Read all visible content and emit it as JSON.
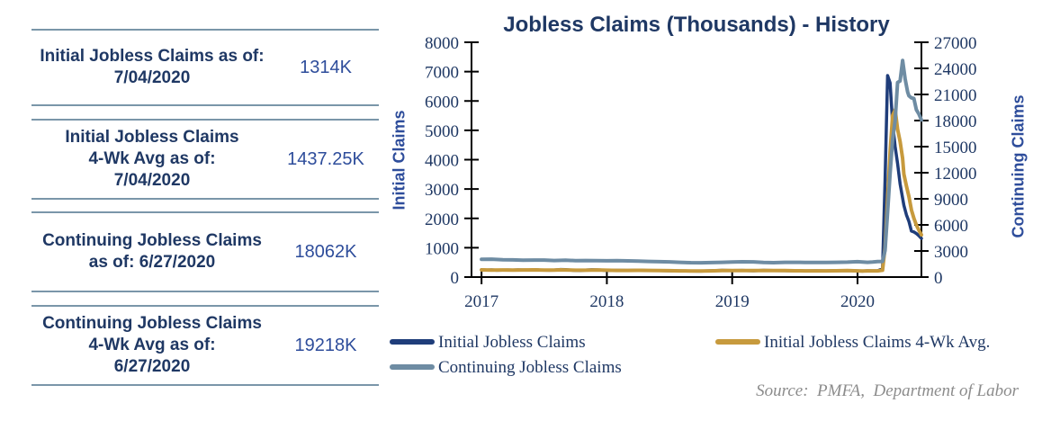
{
  "table": {
    "rows": [
      {
        "label": "Initial Jobless Claims as of:\n7/04/2020",
        "value": "1314K"
      },
      {
        "label": "Initial Jobless Claims\n4-Wk Avg as of:\n7/04/2020",
        "value": "1437.25K"
      },
      {
        "label": "Continuing Jobless Claims\nas of: 6/27/2020",
        "value": "18062K"
      },
      {
        "label": "Continuing Jobless Claims\n4-Wk Avg as of:\n6/27/2020",
        "value": "19218K"
      }
    ]
  },
  "chart": {
    "title": "Jobless Claims (Thousands) - History",
    "left_axis_label": "Initial Claims",
    "right_axis_label": "Continuing Claims",
    "source": "Source:  PMFA,  Department of Labor"
  },
  "legend": {
    "items": [
      {
        "label": "Initial Jobless Claims",
        "color": "#1f3d7a"
      },
      {
        "label": "Initial Jobless Claims 4-Wk Avg.",
        "color": "#c79a3d"
      },
      {
        "label": "Continuing Jobless Claims",
        "color": "#6e8ca3"
      }
    ]
  },
  "colors": {
    "navy_text": "#1f3864",
    "value_text": "#2e4d9b",
    "initial_line": "#1f3d7a",
    "avg_line": "#c79a3d",
    "continuing_line": "#6e8ca3",
    "table_rule": "#7a96a9",
    "axis": "#000000",
    "source_text": "#8c8c8c"
  },
  "chart_data": {
    "type": "line",
    "title": "Jobless Claims (Thousands) - History",
    "grid": false,
    "legend_position": "bottom-left",
    "x_ticks": [
      2017,
      2018,
      2019,
      2020
    ],
    "x_range": [
      2016.92,
      2020.51
    ],
    "left_axis": {
      "label": "Initial Claims",
      "ticks": [
        0,
        1000,
        2000,
        3000,
        4000,
        5000,
        6000,
        7000,
        8000
      ],
      "range": [
        0,
        8000
      ]
    },
    "right_axis": {
      "label": "Continuing Claims",
      "ticks": [
        0,
        3000,
        6000,
        9000,
        12000,
        15000,
        18000,
        21000,
        24000,
        27000
      ],
      "range": [
        0,
        27000
      ]
    },
    "series": [
      {
        "name": "Initial Jobless Claims",
        "axis": "left",
        "color": "#1f3d7a",
        "width": 3.5,
        "points": [
          [
            2017.0,
            247
          ],
          [
            2017.04,
            237
          ],
          [
            2017.08,
            246
          ],
          [
            2017.12,
            234
          ],
          [
            2017.17,
            240
          ],
          [
            2017.21,
            242
          ],
          [
            2017.25,
            235
          ],
          [
            2017.29,
            244
          ],
          [
            2017.33,
            241
          ],
          [
            2017.38,
            236
          ],
          [
            2017.42,
            250
          ],
          [
            2017.46,
            242
          ],
          [
            2017.5,
            240
          ],
          [
            2017.54,
            233
          ],
          [
            2017.58,
            236
          ],
          [
            2017.63,
            259
          ],
          [
            2017.67,
            251
          ],
          [
            2017.71,
            236
          ],
          [
            2017.75,
            226
          ],
          [
            2017.79,
            223
          ],
          [
            2017.83,
            239
          ],
          [
            2017.88,
            249
          ],
          [
            2017.92,
            246
          ],
          [
            2017.96,
            240
          ],
          [
            2018.0,
            221
          ],
          [
            2018.08,
            230
          ],
          [
            2018.17,
            226
          ],
          [
            2018.25,
            233
          ],
          [
            2018.33,
            222
          ],
          [
            2018.42,
            223
          ],
          [
            2018.5,
            214
          ],
          [
            2018.58,
            210
          ],
          [
            2018.67,
            205
          ],
          [
            2018.75,
            202
          ],
          [
            2018.83,
            214
          ],
          [
            2018.92,
            231
          ],
          [
            2019.0,
            220
          ],
          [
            2019.08,
            226
          ],
          [
            2019.17,
            216
          ],
          [
            2019.25,
            230
          ],
          [
            2019.33,
            221
          ],
          [
            2019.42,
            217
          ],
          [
            2019.5,
            215
          ],
          [
            2019.58,
            210
          ],
          [
            2019.67,
            214
          ],
          [
            2019.75,
            212
          ],
          [
            2019.83,
            218
          ],
          [
            2019.92,
            222
          ],
          [
            2020.0,
            212
          ],
          [
            2020.04,
            202
          ],
          [
            2020.08,
            215
          ],
          [
            2020.12,
            211
          ],
          [
            2020.16,
            215
          ],
          [
            2020.2,
            282
          ],
          [
            2020.22,
            3307
          ],
          [
            2020.24,
            6867
          ],
          [
            2020.26,
            6615
          ],
          [
            2020.28,
            5237
          ],
          [
            2020.3,
            4442
          ],
          [
            2020.32,
            3867
          ],
          [
            2020.34,
            3176
          ],
          [
            2020.36,
            2687
          ],
          [
            2020.37,
            2446
          ],
          [
            2020.39,
            2123
          ],
          [
            2020.41,
            1897
          ],
          [
            2020.43,
            1566
          ],
          [
            2020.45,
            1540
          ],
          [
            2020.47,
            1482
          ],
          [
            2020.49,
            1408
          ],
          [
            2020.51,
            1314
          ]
        ]
      },
      {
        "name": "Initial Jobless Claims 4-Wk Avg.",
        "axis": "left",
        "color": "#c79a3d",
        "width": 4,
        "points": [
          [
            2017.0,
            244
          ],
          [
            2017.08,
            240
          ],
          [
            2017.17,
            241
          ],
          [
            2017.25,
            239
          ],
          [
            2017.33,
            241
          ],
          [
            2017.42,
            244
          ],
          [
            2017.5,
            240
          ],
          [
            2017.58,
            238
          ],
          [
            2017.63,
            246
          ],
          [
            2017.67,
            243
          ],
          [
            2017.75,
            234
          ],
          [
            2017.83,
            233
          ],
          [
            2017.92,
            242
          ],
          [
            2018.0,
            232
          ],
          [
            2018.08,
            228
          ],
          [
            2018.17,
            227
          ],
          [
            2018.25,
            229
          ],
          [
            2018.33,
            226
          ],
          [
            2018.42,
            223
          ],
          [
            2018.5,
            217
          ],
          [
            2018.58,
            212
          ],
          [
            2018.67,
            207
          ],
          [
            2018.75,
            206
          ],
          [
            2018.83,
            210
          ],
          [
            2018.92,
            222
          ],
          [
            2019.0,
            223
          ],
          [
            2019.08,
            224
          ],
          [
            2019.17,
            221
          ],
          [
            2019.25,
            224
          ],
          [
            2019.33,
            223
          ],
          [
            2019.42,
            220
          ],
          [
            2019.5,
            216
          ],
          [
            2019.58,
            213
          ],
          [
            2019.67,
            212
          ],
          [
            2019.75,
            213
          ],
          [
            2019.83,
            216
          ],
          [
            2019.92,
            220
          ],
          [
            2020.0,
            212
          ],
          [
            2020.04,
            209
          ],
          [
            2020.08,
            210
          ],
          [
            2020.12,
            212
          ],
          [
            2020.16,
            212
          ],
          [
            2020.2,
            232
          ],
          [
            2020.22,
            1004
          ],
          [
            2020.24,
            2666
          ],
          [
            2020.26,
            4268
          ],
          [
            2020.28,
            5507
          ],
          [
            2020.3,
            5700
          ],
          [
            2020.32,
            5040
          ],
          [
            2020.34,
            4618
          ],
          [
            2020.36,
            4043
          ],
          [
            2020.37,
            3508
          ],
          [
            2020.39,
            3108
          ],
          [
            2020.41,
            2742
          ],
          [
            2020.43,
            2288
          ],
          [
            2020.45,
            2008
          ],
          [
            2020.47,
            1772
          ],
          [
            2020.49,
            1598
          ],
          [
            2020.51,
            1437.25
          ]
        ]
      },
      {
        "name": "Continuing Jobless Claims",
        "axis": "right",
        "color": "#6e8ca3",
        "width": 4,
        "points": [
          [
            2017.0,
            2053
          ],
          [
            2017.08,
            2060
          ],
          [
            2017.17,
            2000
          ],
          [
            2017.25,
            1980
          ],
          [
            2017.33,
            1945
          ],
          [
            2017.42,
            1960
          ],
          [
            2017.5,
            1950
          ],
          [
            2017.58,
            1900
          ],
          [
            2017.67,
            1940
          ],
          [
            2017.75,
            1880
          ],
          [
            2017.83,
            1900
          ],
          [
            2017.92,
            1880
          ],
          [
            2018.0,
            1870
          ],
          [
            2018.08,
            1890
          ],
          [
            2018.17,
            1860
          ],
          [
            2018.25,
            1830
          ],
          [
            2018.33,
            1800
          ],
          [
            2018.42,
            1770
          ],
          [
            2018.5,
            1750
          ],
          [
            2018.58,
            1700
          ],
          [
            2018.67,
            1660
          ],
          [
            2018.75,
            1650
          ],
          [
            2018.83,
            1670
          ],
          [
            2018.92,
            1700
          ],
          [
            2019.0,
            1740
          ],
          [
            2019.08,
            1760
          ],
          [
            2019.17,
            1750
          ],
          [
            2019.25,
            1680
          ],
          [
            2019.33,
            1660
          ],
          [
            2019.42,
            1700
          ],
          [
            2019.5,
            1699
          ],
          [
            2019.58,
            1690
          ],
          [
            2019.67,
            1680
          ],
          [
            2019.75,
            1690
          ],
          [
            2019.83,
            1700
          ],
          [
            2019.92,
            1720
          ],
          [
            2020.0,
            1770
          ],
          [
            2020.04,
            1740
          ],
          [
            2020.08,
            1700
          ],
          [
            2020.12,
            1730
          ],
          [
            2020.16,
            1784
          ],
          [
            2020.2,
            1803
          ],
          [
            2020.22,
            3059
          ],
          [
            2020.24,
            7446
          ],
          [
            2020.26,
            11914
          ],
          [
            2020.28,
            15819
          ],
          [
            2020.3,
            18011
          ],
          [
            2020.32,
            22377
          ],
          [
            2020.34,
            22548
          ],
          [
            2020.36,
            24912
          ],
          [
            2020.38,
            22793
          ],
          [
            2020.4,
            21268
          ],
          [
            2020.41,
            20841
          ],
          [
            2020.43,
            20606
          ],
          [
            2020.45,
            20544
          ],
          [
            2020.47,
            19231
          ],
          [
            2020.49,
            18760
          ],
          [
            2020.51,
            18062
          ]
        ]
      }
    ]
  }
}
